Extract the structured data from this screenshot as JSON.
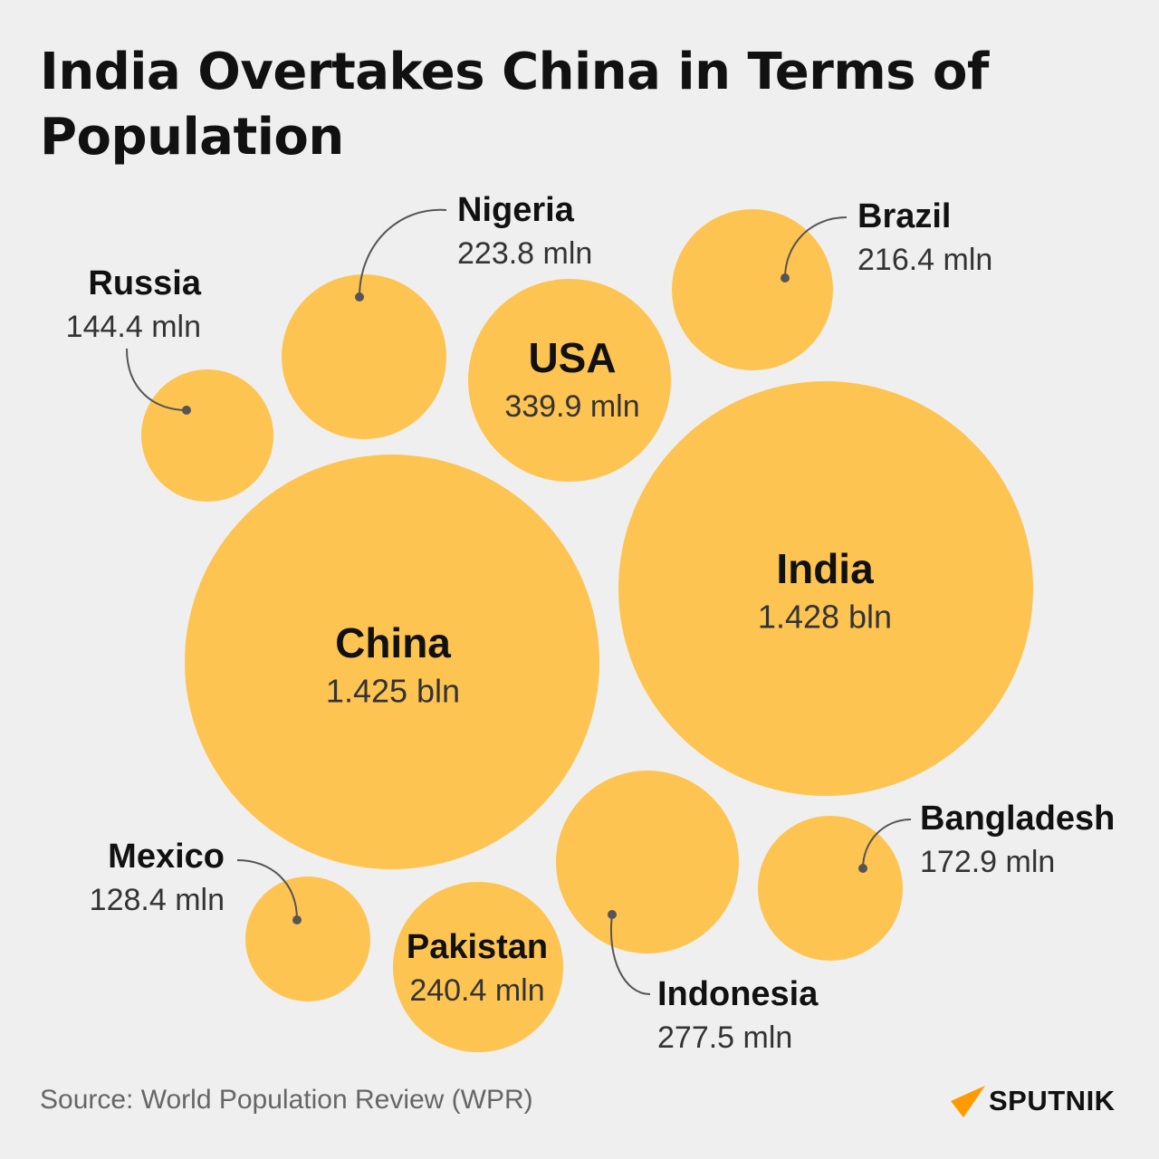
{
  "title": "India Overtakes China in Terms of Population",
  "source": "Source: World Population Review (WPR)",
  "logo": "SPUTNIK",
  "colors": {
    "background": "#efefef",
    "bubble": "#fec452",
    "logo_accent": "#ff9a00"
  },
  "chart_data": {
    "type": "bubble",
    "title": "India Overtakes China in Terms of Population",
    "unit_note": "population",
    "points": [
      {
        "name": "Russia",
        "value": 144.4,
        "unit": "mln",
        "label": "144.4 mln"
      },
      {
        "name": "Nigeria",
        "value": 223.8,
        "unit": "mln",
        "label": "223.8 mln"
      },
      {
        "name": "USA",
        "value": 339.9,
        "unit": "mln",
        "label": "339.9 mln"
      },
      {
        "name": "Brazil",
        "value": 216.4,
        "unit": "mln",
        "label": "216.4 mln"
      },
      {
        "name": "China",
        "value": 1425,
        "unit": "mln",
        "label": "1.425 bln"
      },
      {
        "name": "India",
        "value": 1428,
        "unit": "mln",
        "label": "1.428 bln"
      },
      {
        "name": "Mexico",
        "value": 128.4,
        "unit": "mln",
        "label": "128.4 mln"
      },
      {
        "name": "Pakistan",
        "value": 240.4,
        "unit": "mln",
        "label": "240.4 mln"
      },
      {
        "name": "Indonesia",
        "value": 277.5,
        "unit": "mln",
        "label": "277.5 mln"
      },
      {
        "name": "Bangladesh",
        "value": 172.9,
        "unit": "mln",
        "label": "172.9 mln"
      }
    ]
  }
}
